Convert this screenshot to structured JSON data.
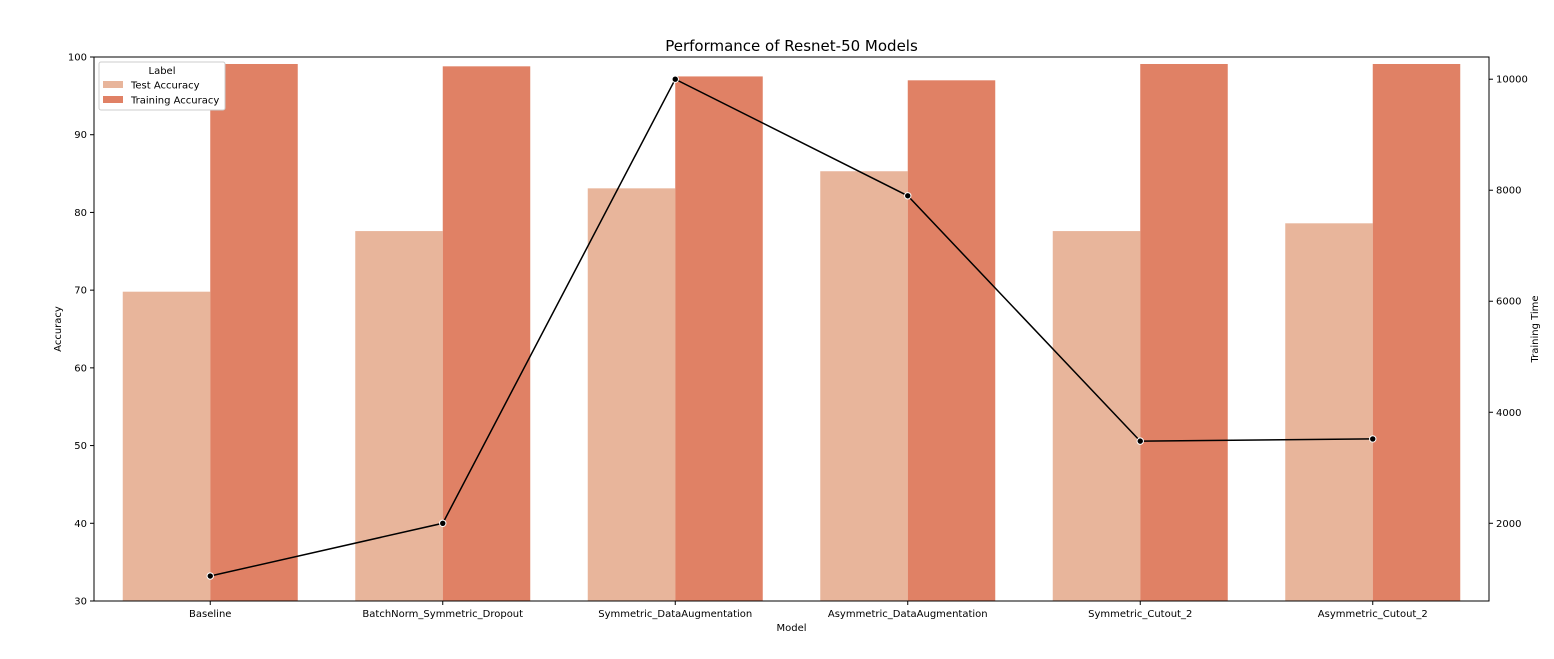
{
  "chart_data": {
    "type": "bar",
    "title": "Performance of Resnet-50 Models",
    "xlabel": "Model",
    "ylabel": "Accuracy",
    "y2label": "Training Time",
    "ylim": [
      30,
      100
    ],
    "y2lim": [
      600,
      10400
    ],
    "yticks": [
      30,
      40,
      50,
      60,
      70,
      80,
      90,
      100
    ],
    "y2ticks": [
      2000,
      4000,
      6000,
      8000,
      10000
    ],
    "grid": false,
    "legend": {
      "title": "Label",
      "position": "top-left"
    },
    "categories": [
      "Baseline",
      "BatchNorm_Symmetric_Dropout",
      "Symmetric_DataAugmentation",
      "Asymmetric_DataAugmentation",
      "Symmetric_Cutout_2",
      "Asymmetric_Cutout_2"
    ],
    "series": [
      {
        "name": "Test Accuracy",
        "color": "#e8b59b",
        "values": [
          69.8,
          77.6,
          83.1,
          85.3,
          77.6,
          78.6
        ]
      },
      {
        "name": "Training Accuracy",
        "color": "#e08165",
        "values": [
          99.1,
          98.8,
          97.5,
          97.0,
          99.1,
          99.1
        ]
      }
    ],
    "line_series": {
      "color": "#000000",
      "axis": "right",
      "values": [
        1050,
        2000,
        10000,
        7900,
        3480,
        3520
      ]
    }
  }
}
